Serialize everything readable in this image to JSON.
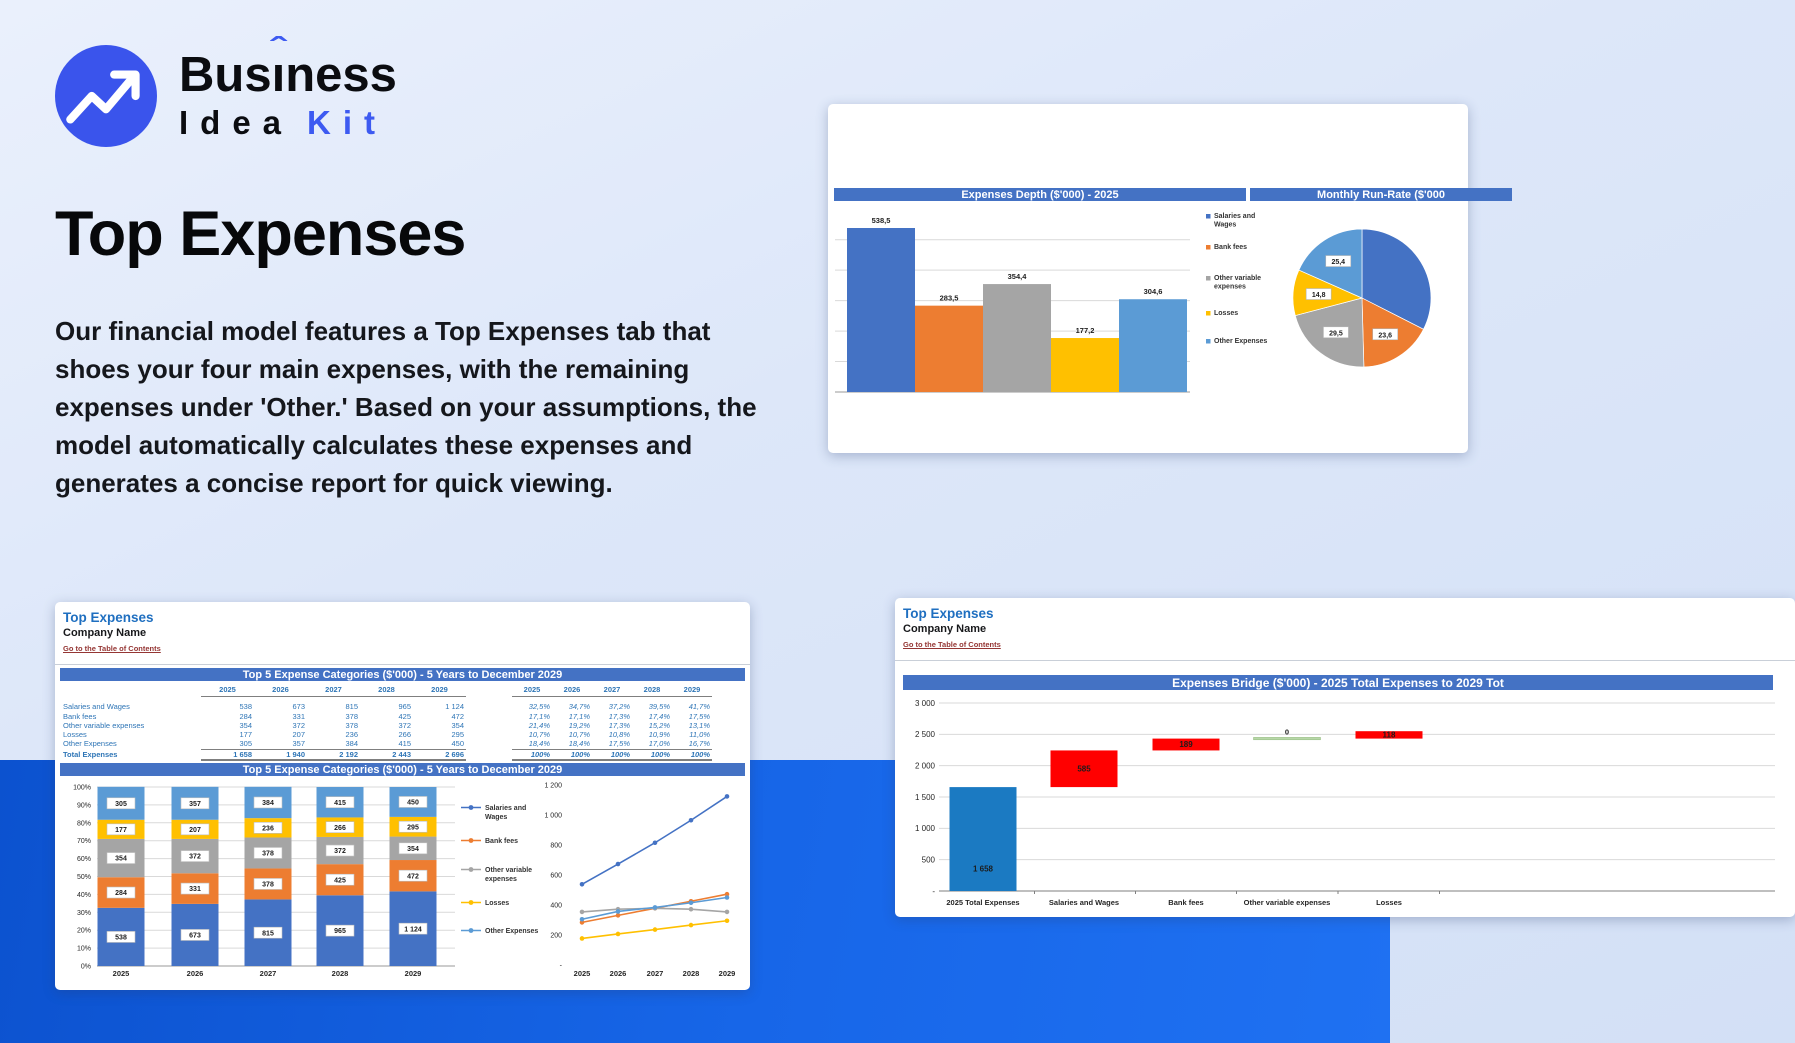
{
  "logo": {
    "brand_top": "Business",
    "part1": "Bus",
    "i_char": "ı",
    "caret": "ˆ",
    "part2": "ness",
    "bottom_dark": "Idea",
    "bottom_accent": "Kit"
  },
  "hero": {
    "heading": "Top Expenses",
    "paragraph": "Our financial model features a Top Expenses tab that shoes your four main expenses, with the remaining expenses under 'Other.' Based on your assumptions, the model automatically calculates these expenses and generates a concise report for quick viewing."
  },
  "palette": {
    "excel_blue": "#4472C4",
    "excel_orange": "#ED7D31",
    "excel_gray": "#A5A5A5",
    "excel_yellow": "#FFC000",
    "excel_lightblue": "#5B9BD5",
    "waterfall_total": "#1B7AC2",
    "waterfall_increase": "#FF0000",
    "waterfall_zero": "#B7D7A8",
    "header_bar": "#4472C4",
    "sheet_title": "#1F6FC0",
    "sheet_link": "#953634",
    "table_text": "#2E75B6",
    "brand_blue": "#3D5AF1",
    "band_blue": "#1766E8"
  },
  "sheet_tr": {
    "header_left": "Expenses Depth ($'000) - 2025",
    "header_right": "Monthly Run-Rate ($'000"
  },
  "sheet_bl": {
    "title": "Top Expenses",
    "company": "Company Name",
    "link": "Go to the Table of Contents",
    "header1": "Top 5 Expense Categories ($'000) - 5 Years to December 2029",
    "header2": "Top 5 Expense Categories ($'000) - 5 Years to December 2029",
    "table": {
      "years": [
        "2025",
        "2026",
        "2027",
        "2028",
        "2029"
      ],
      "rows": [
        {
          "label": "Salaries and Wages",
          "values": [
            "538",
            "673",
            "815",
            "965",
            "1 124"
          ],
          "pcts": [
            "32,5%",
            "34,7%",
            "37,2%",
            "39,5%",
            "41,7%"
          ]
        },
        {
          "label": "Bank fees",
          "values": [
            "284",
            "331",
            "378",
            "425",
            "472"
          ],
          "pcts": [
            "17,1%",
            "17,1%",
            "17,3%",
            "17,4%",
            "17,5%"
          ]
        },
        {
          "label": "Other variable expenses",
          "values": [
            "354",
            "372",
            "378",
            "372",
            "354"
          ],
          "pcts": [
            "21,4%",
            "19,2%",
            "17,3%",
            "15,2%",
            "13,1%"
          ]
        },
        {
          "label": "Losses",
          "values": [
            "177",
            "207",
            "236",
            "266",
            "295"
          ],
          "pcts": [
            "10,7%",
            "10,7%",
            "10,8%",
            "10,9%",
            "11,0%"
          ]
        },
        {
          "label": "Other Expenses",
          "values": [
            "305",
            "357",
            "384",
            "415",
            "450"
          ],
          "pcts": [
            "18,4%",
            "18,4%",
            "17,5%",
            "17,0%",
            "16,7%"
          ]
        }
      ],
      "total": {
        "label": "Total Expenses",
        "values": [
          "1 658",
          "1 940",
          "2 192",
          "2 443",
          "2 696"
        ],
        "pcts": [
          "100%",
          "100%",
          "100%",
          "100%",
          "100%"
        ]
      }
    }
  },
  "sheet_br": {
    "title": "Top Expenses",
    "company": "Company Name",
    "link": "Go to the Table of Contents",
    "header": "Expenses Bridge ($'000) - 2025 Total Expenses to 2029 Tot"
  },
  "legend_items": [
    {
      "lines": [
        "Salaries and",
        "Wages"
      ],
      "color": "#4472C4"
    },
    {
      "lines": [
        "Bank fees"
      ],
      "color": "#ED7D31"
    },
    {
      "lines": [
        "Other variable",
        "expenses"
      ],
      "color": "#A5A5A5"
    },
    {
      "lines": [
        "Losses"
      ],
      "color": "#FFC000"
    },
    {
      "lines": [
        "Other Expenses"
      ],
      "color": "#5B9BD5"
    }
  ],
  "chart_data": [
    {
      "id": "expenses-depth",
      "type": "bar",
      "title": "Expenses Depth ($'000) - 2025",
      "categories": [
        "Salaries and Wages",
        "Bank fees",
        "Other variable expenses",
        "Losses",
        "Other Expenses"
      ],
      "values": [
        538.5,
        283.5,
        354.4,
        177.2,
        304.6
      ],
      "value_labels": [
        "538,5",
        "283,5",
        "354,4",
        "177,2",
        "304,6"
      ],
      "colors": [
        "#4472C4",
        "#ED7D31",
        "#A5A5A5",
        "#FFC000",
        "#5B9BD5"
      ],
      "ylim": [
        0,
        560
      ],
      "gridline_step": 100,
      "grid": true,
      "legend_position": "right",
      "y_axis_labels_visible": false
    },
    {
      "id": "monthly-run-rate",
      "type": "pie",
      "title": "Monthly Run-Rate ($'000",
      "categories": [
        "Salaries and Wages",
        "Bank fees",
        "Other variable expenses",
        "Losses",
        "Other Expenses"
      ],
      "values": [
        44.9,
        23.6,
        29.5,
        14.8,
        25.4
      ],
      "slice_labels": [
        null,
        "23,6",
        "29,5",
        "14,8",
        "25,4"
      ],
      "colors": [
        "#4472C4",
        "#ED7D31",
        "#A5A5A5",
        "#FFC000",
        "#5B9BD5"
      ]
    },
    {
      "id": "top5-stacked",
      "type": "bar",
      "subtype": "stacked-100",
      "title": "Top 5 Expense Categories ($'000) - 5 Years to December 2029",
      "categories": [
        "2025",
        "2026",
        "2027",
        "2028",
        "2029"
      ],
      "yticks": [
        "0%",
        "10%",
        "20%",
        "30%",
        "40%",
        "50%",
        "60%",
        "70%",
        "80%",
        "90%",
        "100%"
      ],
      "grid": true,
      "series": [
        {
          "name": "Salaries and Wages",
          "color": "#4472C4",
          "values": [
            538,
            673,
            815,
            965,
            1124
          ],
          "labels": [
            "538",
            "673",
            "815",
            "965",
            "1 124"
          ],
          "pcts": [
            32.5,
            34.7,
            37.2,
            39.5,
            41.7
          ]
        },
        {
          "name": "Bank fees",
          "color": "#ED7D31",
          "values": [
            284,
            331,
            378,
            425,
            472
          ],
          "labels": [
            "284",
            "331",
            "378",
            "425",
            "472"
          ],
          "pcts": [
            17.1,
            17.1,
            17.3,
            17.4,
            17.5
          ]
        },
        {
          "name": "Other variable expenses",
          "color": "#A5A5A5",
          "values": [
            354,
            372,
            378,
            372,
            354
          ],
          "labels": [
            "354",
            "372",
            "378",
            "372",
            "354"
          ],
          "pcts": [
            21.4,
            19.2,
            17.3,
            15.2,
            13.1
          ]
        },
        {
          "name": "Losses",
          "color": "#FFC000",
          "values": [
            177,
            207,
            236,
            266,
            295
          ],
          "labels": [
            "177",
            "207",
            "236",
            "266",
            "295"
          ],
          "pcts": [
            10.7,
            10.7,
            10.8,
            10.9,
            11.0
          ]
        },
        {
          "name": "Other Expenses",
          "color": "#5B9BD5",
          "values": [
            305,
            357,
            384,
            415,
            450
          ],
          "labels": [
            "305",
            "357",
            "384",
            "415",
            "450"
          ],
          "pcts": [
            18.4,
            18.4,
            17.5,
            17.0,
            16.7
          ]
        }
      ]
    },
    {
      "id": "top5-lines",
      "type": "line",
      "categories": [
        "2025",
        "2026",
        "2027",
        "2028",
        "2029"
      ],
      "uses_series_of": "top5-stacked",
      "yticks": [
        "1 200",
        "1 000",
        "800",
        "600",
        "400",
        "200",
        "-"
      ],
      "ylim": [
        0,
        1200
      ],
      "grid": false,
      "markers": true
    },
    {
      "id": "expenses-bridge",
      "type": "waterfall",
      "title": "Expenses Bridge ($'000) - 2025 Total Expenses to 2029 Tot",
      "categories": [
        "2025 Total Expenses",
        "Salaries and Wages",
        "Bank fees",
        "Other variable expenses",
        "Losses"
      ],
      "steps": [
        {
          "label": "1 658",
          "start": 0,
          "end": 1658,
          "kind": "total"
        },
        {
          "label": "585",
          "start": 1658,
          "end": 2243,
          "kind": "increase"
        },
        {
          "label": "189",
          "start": 2243,
          "end": 2432,
          "kind": "increase"
        },
        {
          "label": "0",
          "start": 2432,
          "end": 2432,
          "kind": "zero"
        },
        {
          "label": "118",
          "start": 2432,
          "end": 2550,
          "kind": "increase"
        }
      ],
      "yticks": [
        "3 000",
        "2 500",
        "2 000",
        "1 500",
        "1 000",
        "500",
        "-"
      ],
      "ylim": [
        0,
        3000
      ],
      "grid": true
    }
  ]
}
